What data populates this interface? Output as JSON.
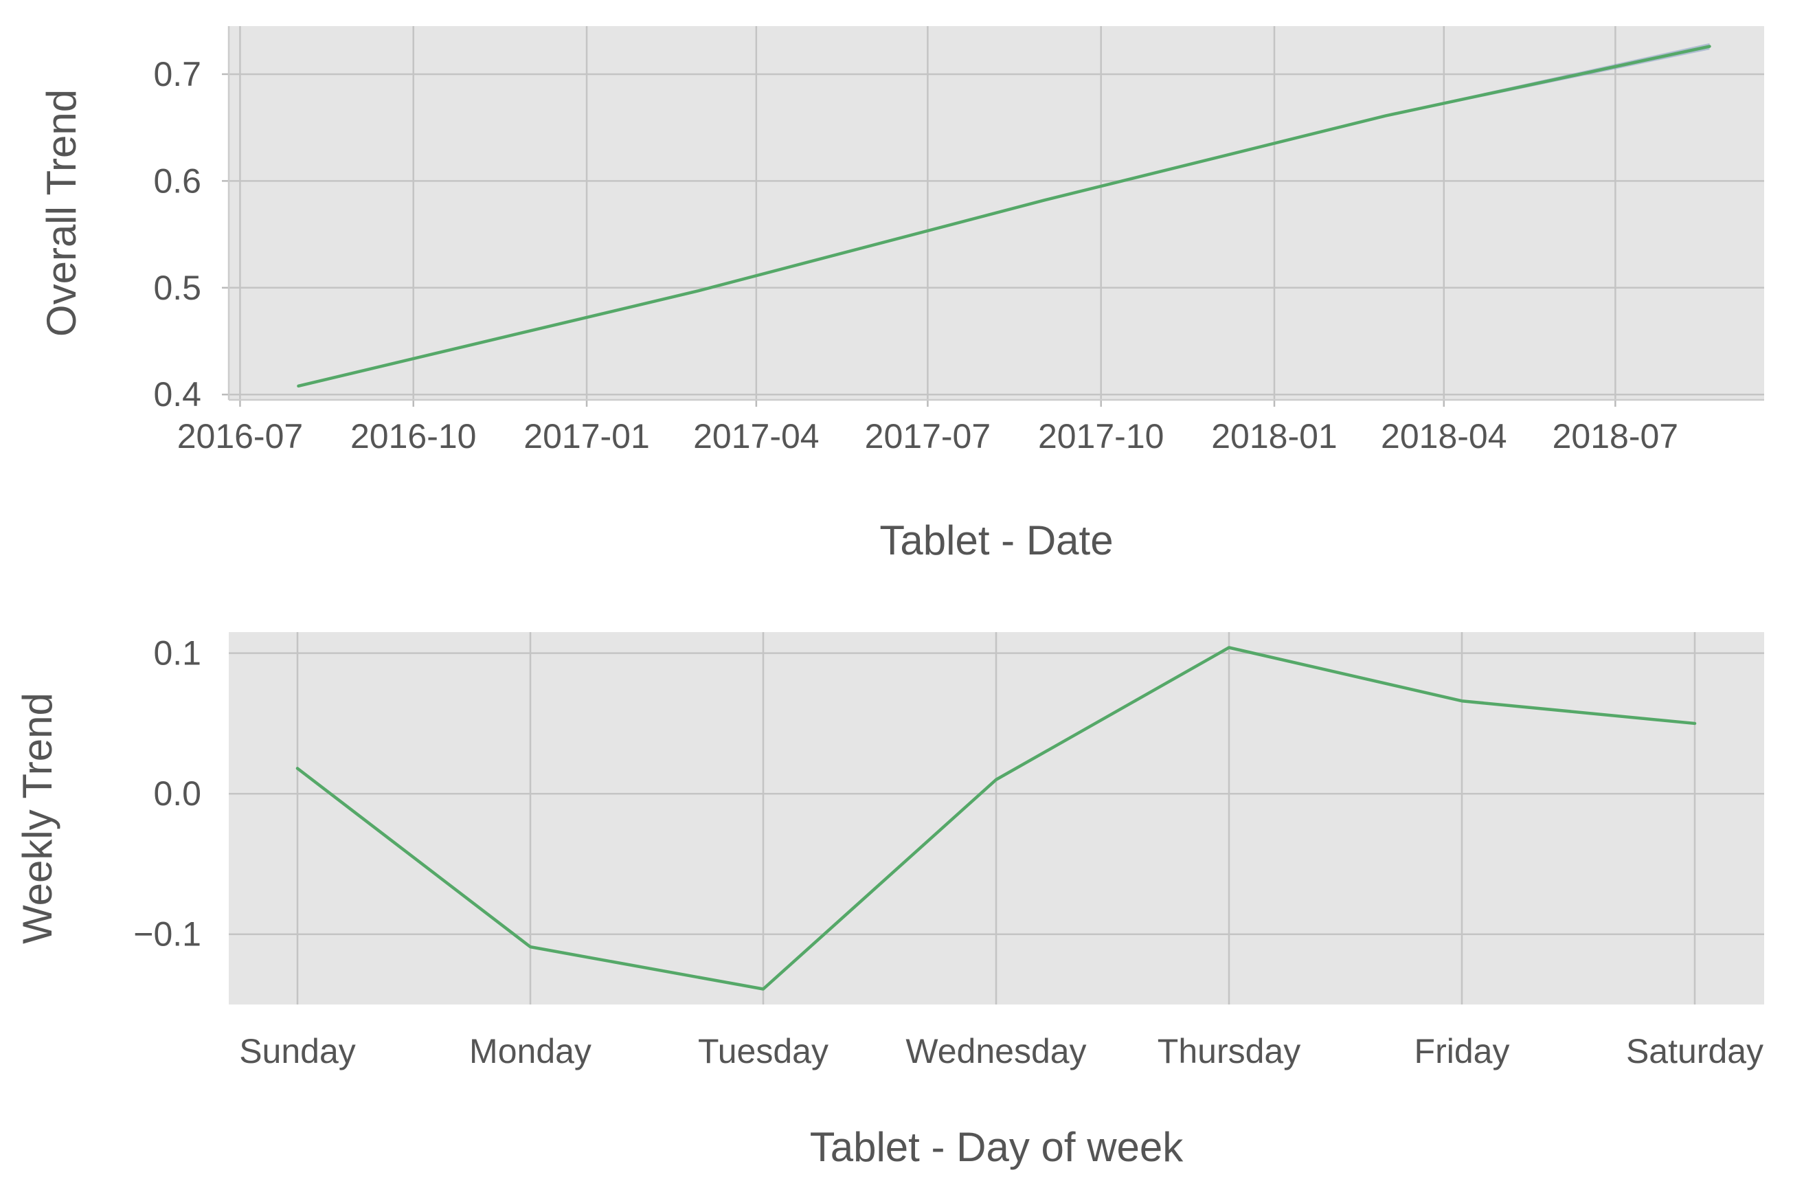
{
  "colors": {
    "series": "#55a868",
    "band": "#4c72b0",
    "plot_background": "#e5e5e5",
    "text": "#555555"
  },
  "chart_data": [
    {
      "type": "line",
      "title": "",
      "xlabel": "Tablet - Date",
      "ylabel": "Overall Trend",
      "x_axis_type": "date",
      "xlim": [
        "2016-06-25",
        "2018-09-18"
      ],
      "ylim": [
        0.395,
        0.745
      ],
      "x_ticks": [
        "2016-07-01",
        "2016-10-01",
        "2017-01-01",
        "2017-04-01",
        "2017-07-01",
        "2017-10-01",
        "2018-01-01",
        "2018-04-01",
        "2018-07-01"
      ],
      "x_tick_labels": [
        "2016-07",
        "2016-10",
        "2017-01",
        "2017-04",
        "2017-07",
        "2017-10",
        "2018-01",
        "2018-04",
        "2018-07"
      ],
      "y_ticks": [
        0.4,
        0.5,
        0.6,
        0.7
      ],
      "y_tick_labels": [
        "0.4",
        "0.5",
        "0.6",
        "0.7"
      ],
      "grid": true,
      "legend": "none",
      "series": [
        {
          "x": [
            "2016-08-01",
            "2017-03-01",
            "2017-09-01",
            "2018-03-01",
            "2018-08-20"
          ],
          "y": [
            0.408,
            0.497,
            0.582,
            0.661,
            0.726
          ],
          "y_lower": [
            0.408,
            0.497,
            0.582,
            0.66,
            0.723
          ],
          "y_upper": [
            0.408,
            0.497,
            0.582,
            0.662,
            0.729
          ]
        }
      ]
    },
    {
      "type": "line",
      "title": "",
      "xlabel": "Tablet - Day of week",
      "ylabel": "Weekly Trend",
      "categories": [
        "Sunday",
        "Monday",
        "Tuesday",
        "Wednesday",
        "Thursday",
        "Friday",
        "Saturday"
      ],
      "ylim": [
        -0.15,
        0.115
      ],
      "y_ticks": [
        -0.1,
        0.0,
        0.1
      ],
      "y_tick_labels": [
        "−0.1",
        "0.0",
        "0.1"
      ],
      "grid": true,
      "legend": "none",
      "series": [
        {
          "values": [
            0.018,
            -0.109,
            -0.139,
            0.01,
            0.104,
            0.066,
            0.05
          ]
        }
      ]
    }
  ]
}
